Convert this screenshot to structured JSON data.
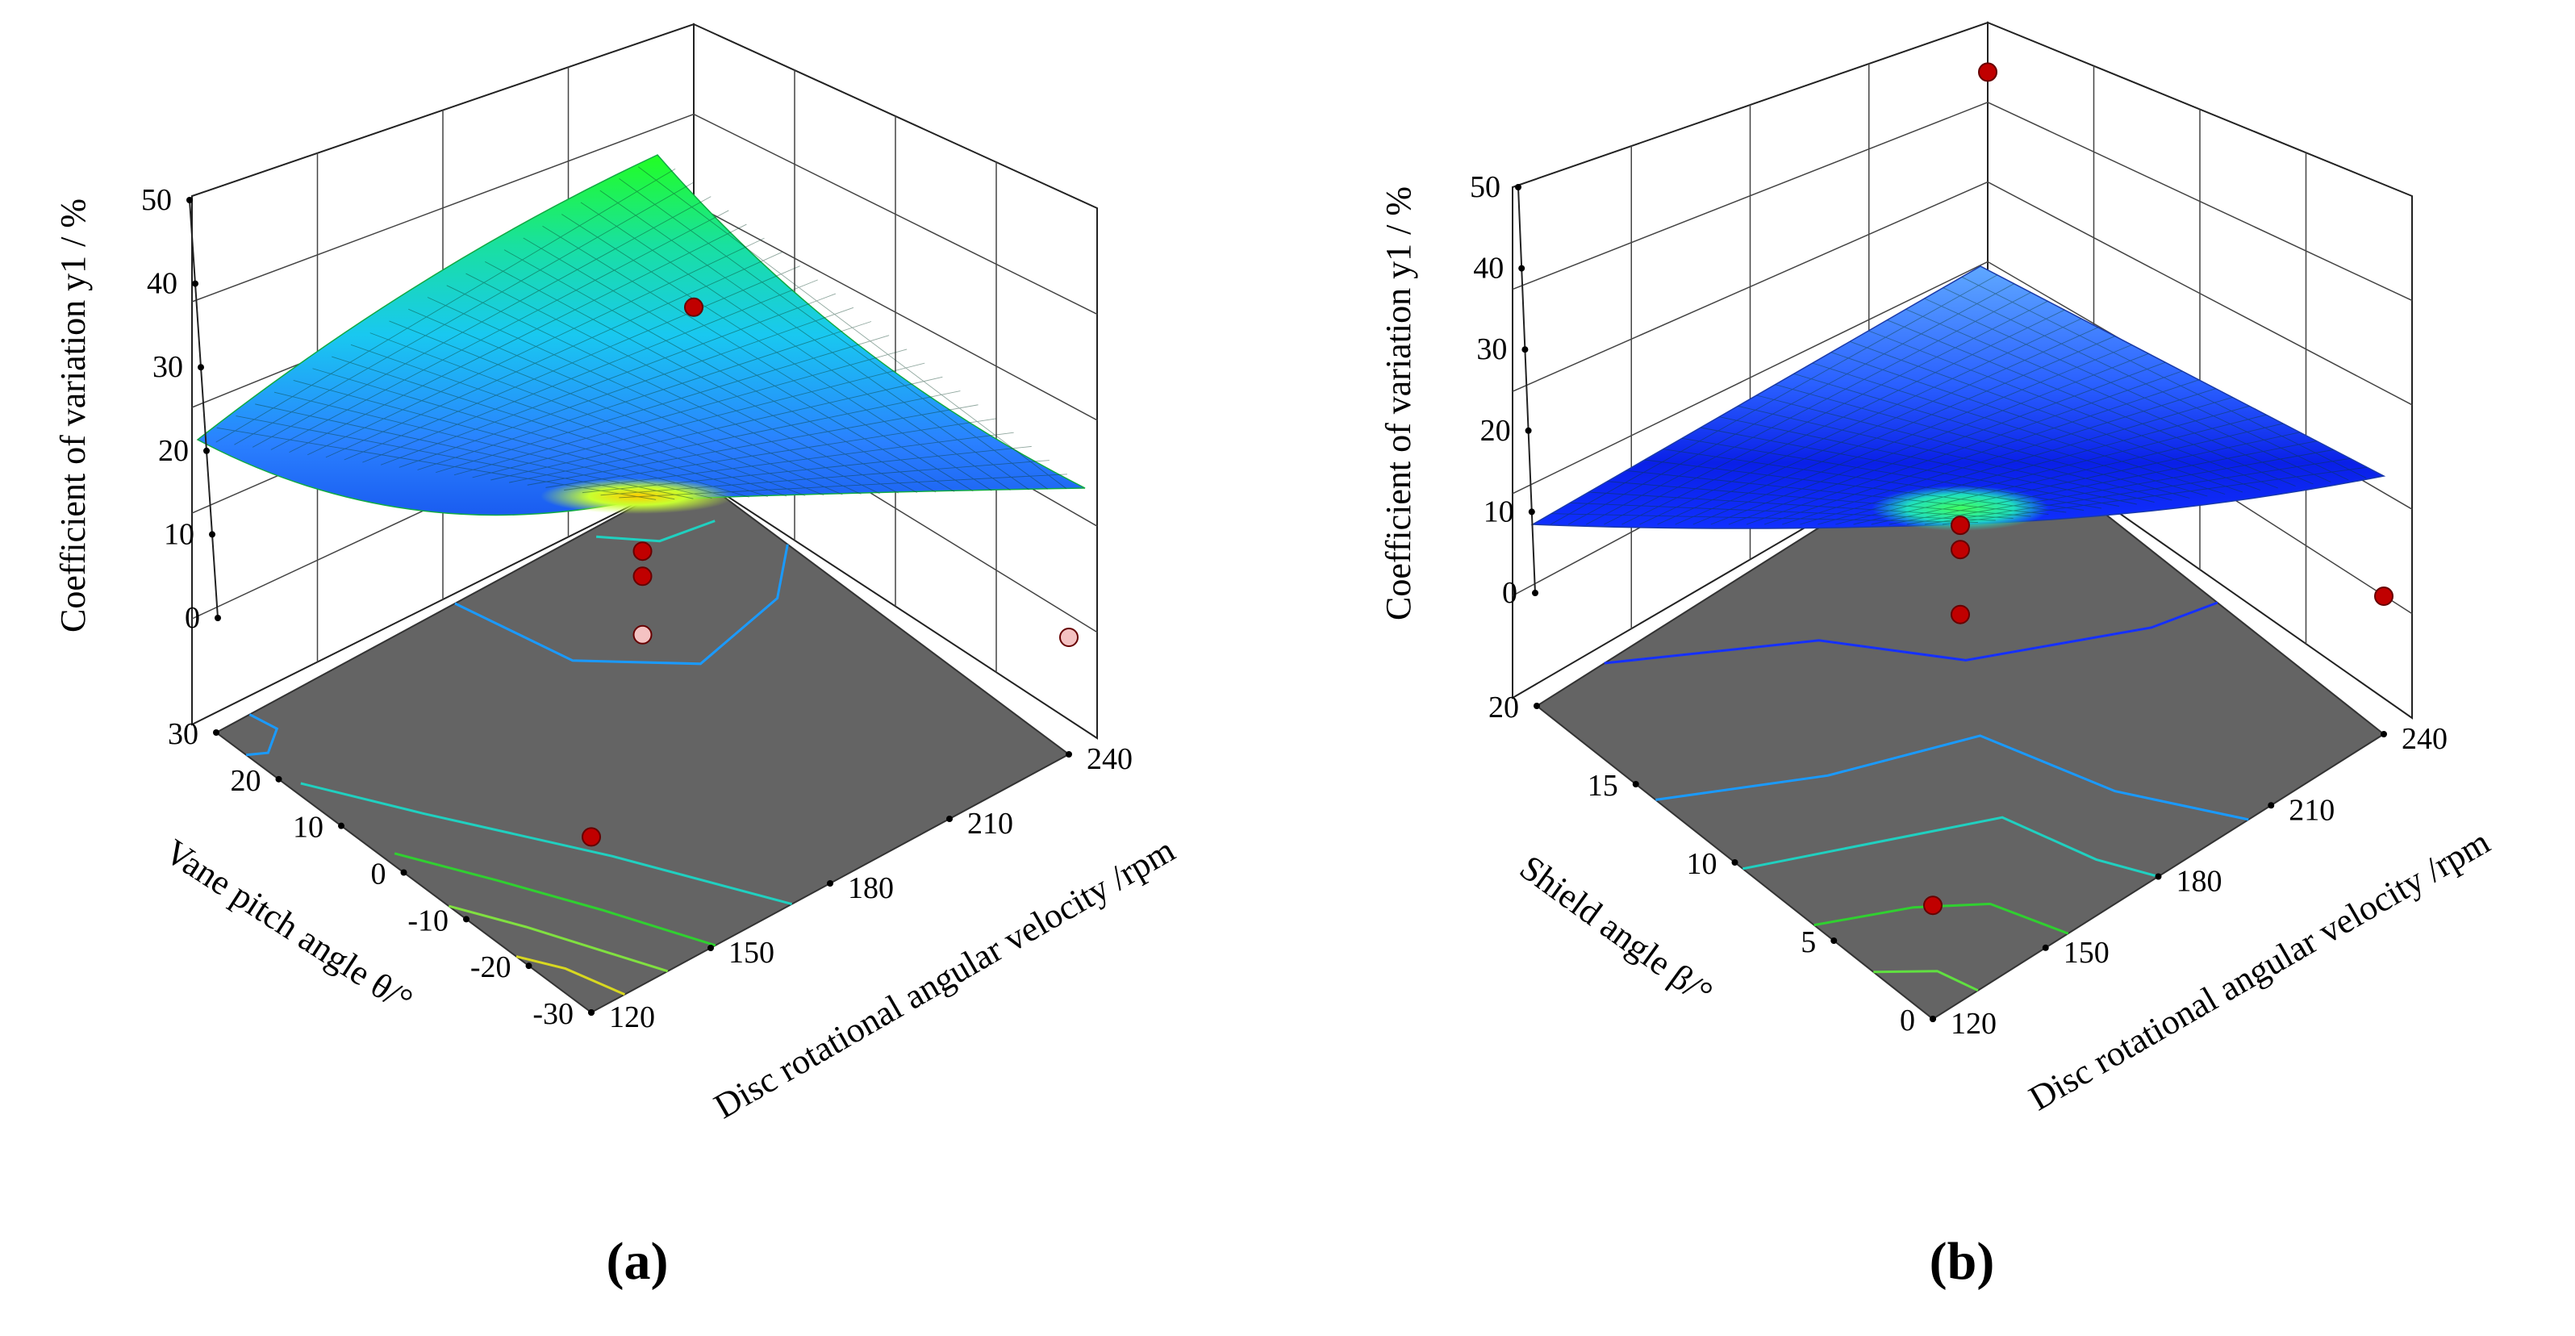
{
  "colors": {
    "floor": "#646464",
    "grid": "#444444",
    "point": "#c00000",
    "point_light": "#f4c2c2",
    "contour_blue": "#1a9aff",
    "contour_cyan": "#20d0c0",
    "contour_green": "#30d030",
    "contour_yellow": "#d8d820"
  },
  "chart_data": [
    {
      "type": "surface",
      "label": "(a)",
      "zlabel": "Coefficient of variation y1 / %",
      "xlabel": "Disc rotational angular velocity /rpm",
      "ylabel": "Vane pitch angle θ/°",
      "xlim": [
        120,
        240
      ],
      "ylim": [
        -30,
        30
      ],
      "zlim": [
        0,
        50
      ],
      "x_ticks": [
        "120",
        "150",
        "180",
        "210",
        "240"
      ],
      "y_ticks": [
        "-30",
        "-20",
        "-10",
        "0",
        "10",
        "20",
        "30"
      ],
      "z_ticks": [
        "0",
        "10",
        "20",
        "30",
        "40",
        "50"
      ],
      "design_points": [
        {
          "x": 240,
          "y": 30,
          "z": 20,
          "above_surface": true
        },
        {
          "x": 180,
          "y": 0,
          "z": 23,
          "above_surface": true
        },
        {
          "x": 180,
          "y": 0,
          "z": 20,
          "above_surface": true
        },
        {
          "x": 120,
          "y": -30,
          "z": 21,
          "above_surface": true
        },
        {
          "x": 180,
          "y": 0,
          "z": 13,
          "above_surface": false
        },
        {
          "x": 240,
          "y": -30,
          "z": 14,
          "above_surface": false
        }
      ],
      "surface_corners": {
        "x120_y-30": 21,
        "x240_y30": 45,
        "x240_y-30": 14,
        "x120_y30": 13,
        "center": 19
      }
    },
    {
      "type": "surface",
      "label": "(b)",
      "zlabel": "Coefficient of variation y1 / %",
      "xlabel": "Disc rotational angular velocity /rpm",
      "ylabel": "Shield angle β/°",
      "xlim": [
        120,
        240
      ],
      "ylim": [
        0,
        20
      ],
      "zlim": [
        0,
        50
      ],
      "x_ticks": [
        "120",
        "150",
        "180",
        "210",
        "240"
      ],
      "y_ticks": [
        "0",
        "5",
        "10",
        "15",
        "20"
      ],
      "z_ticks": [
        "0",
        "10",
        "20",
        "30",
        "40",
        "50"
      ],
      "design_points": [
        {
          "x": 240,
          "y": 20,
          "z": 43,
          "above_surface": true
        },
        {
          "x": 180,
          "y": 10,
          "z": 24,
          "above_surface": true
        },
        {
          "x": 180,
          "y": 10,
          "z": 21,
          "above_surface": true
        },
        {
          "x": 180,
          "y": 10,
          "z": 13,
          "above_surface": true
        },
        {
          "x": 120,
          "y": 0,
          "z": 14,
          "above_surface": true
        },
        {
          "x": 240,
          "y": 0,
          "z": 17,
          "above_surface": true
        }
      ],
      "surface_corners": {
        "x120_y0": 9,
        "x240_y20": 36,
        "x240_y0": 15,
        "x120_y20": 9
      }
    }
  ]
}
